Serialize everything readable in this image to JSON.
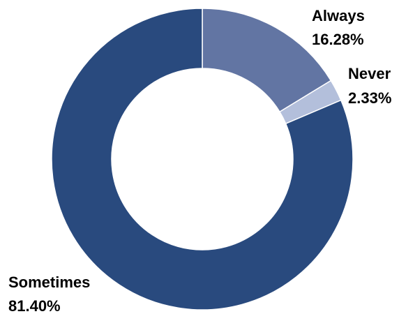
{
  "chart_data": {
    "type": "pie",
    "variant": "donut",
    "title": "",
    "categories": [
      "Always",
      "Never",
      "Sometimes"
    ],
    "values": [
      16.28,
      2.33,
      81.4
    ],
    "value_labels": [
      "16.28%",
      "2.33%",
      "81.40%"
    ],
    "colors": [
      "#6275a3",
      "#b3bfdb",
      "#294a7e"
    ],
    "unit": "%",
    "start_angle_deg": 0,
    "direction": "clockwise",
    "legend": "none",
    "labels": "outside"
  }
}
